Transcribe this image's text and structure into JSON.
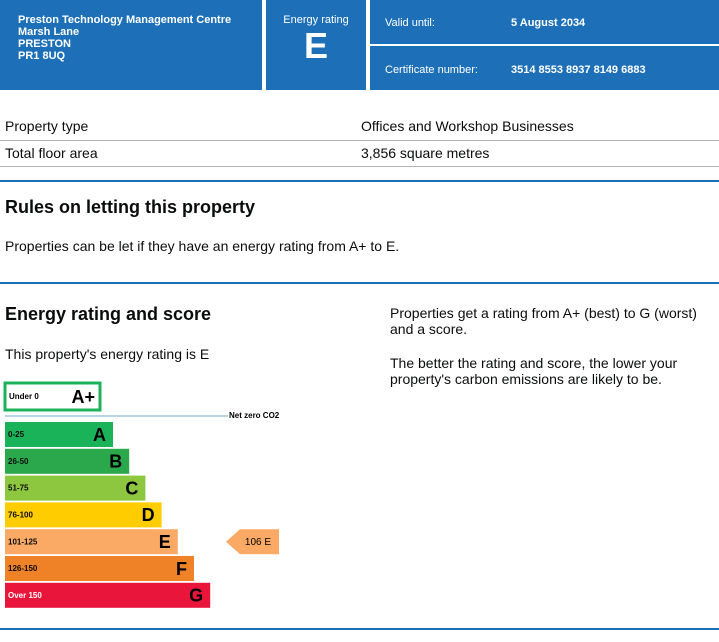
{
  "header": {
    "address": [
      "Preston Technology Management Centre",
      "Marsh Lane",
      "PRESTON",
      "PR1 8UQ"
    ],
    "energy_rating_label": "Energy rating",
    "energy_rating": "E",
    "valid_until_label": "Valid until:",
    "valid_until": "5 August 2034",
    "certificate_number_label": "Certificate number:",
    "certificate_number": "3514 8553 8937 8149 6883"
  },
  "property": {
    "rows": [
      [
        "Property type",
        "Offices and Workshop Businesses"
      ],
      [
        "Total floor area",
        "3,856 square metres"
      ]
    ]
  },
  "rules": {
    "title": "Rules on letting this property",
    "text": "Properties can be let if they have an energy rating from A+ to E."
  },
  "energy": {
    "title": "Energy rating and score",
    "text": "This property's energy rating is E",
    "info": [
      "Properties get a rating from A+ (best) to G (worst) and a score.",
      "The better the rating and score, the lower your property's carbon emissions are likely to be."
    ],
    "net_zero": "Net zero CO2",
    "bands": [
      {
        "range": "Under 0",
        "letter": "A+",
        "color": "#ffffff"
      },
      {
        "range": "0-25",
        "letter": "A",
        "color": "#1bb35a"
      },
      {
        "range": "26-50",
        "letter": "B",
        "color": "#2ba84b"
      },
      {
        "range": "51-75",
        "letter": "C",
        "color": "#8dc63f"
      },
      {
        "range": "76-100",
        "letter": "D",
        "color": "#ffcc00"
      },
      {
        "range": "101-125",
        "letter": "E",
        "color": "#fbaa65"
      },
      {
        "range": "126-150",
        "letter": "F",
        "color": "#ef8126"
      },
      {
        "range": "Over 150",
        "letter": "G",
        "color": "#e9153b"
      }
    ],
    "current": "106 E",
    "current_band": 5
  }
}
